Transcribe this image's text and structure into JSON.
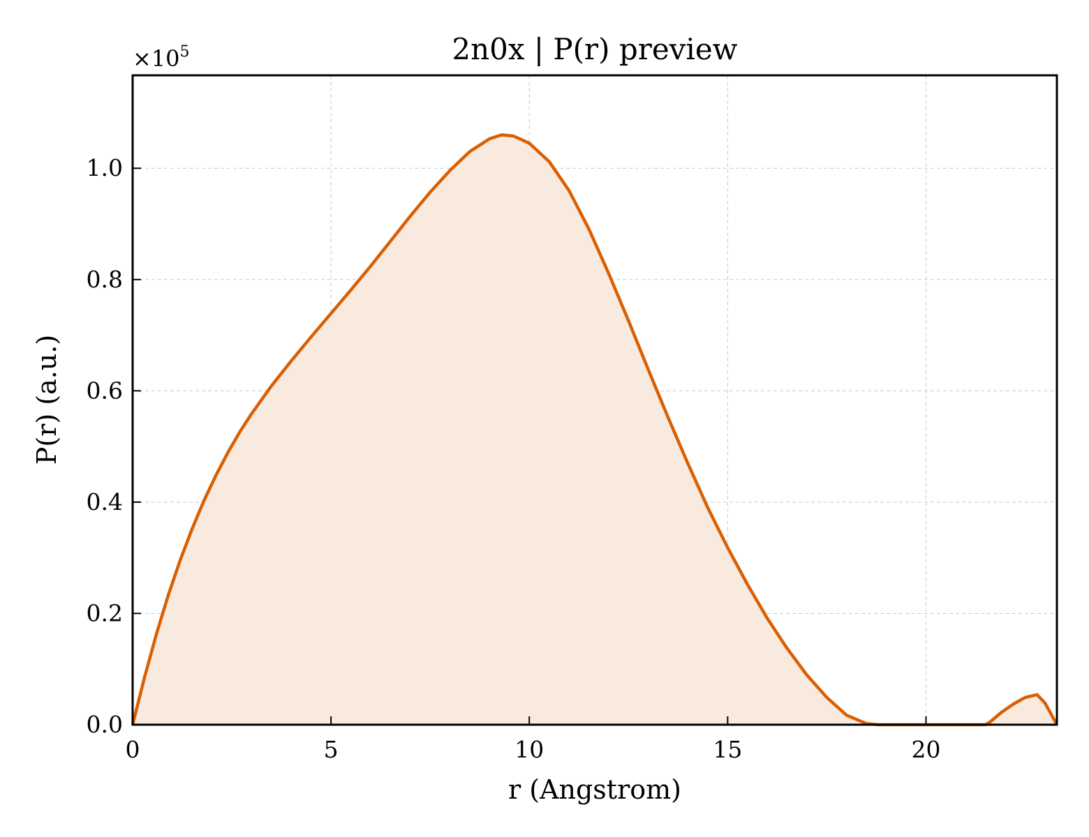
{
  "chart_data": {
    "type": "area",
    "title": "2n0x | P(r) preview",
    "xlabel": "r (Angstrom)",
    "ylabel": "P(r) (a.u.)",
    "y_offset_label": "×10",
    "y_offset_exponent": "5",
    "xlim": [
      0,
      23.3
    ],
    "ylim": [
      0,
      1.167
    ],
    "y_multiplier": 100000,
    "x_ticks": [
      0,
      5,
      10,
      15,
      20
    ],
    "y_ticks": [
      0.0,
      0.2,
      0.4,
      0.6,
      0.8,
      1.0
    ],
    "x_tick_labels": [
      "0",
      "5",
      "10",
      "15",
      "20"
    ],
    "y_tick_labels": [
      "0.0",
      "0.2",
      "0.4",
      "0.6",
      "0.8",
      "1.0"
    ],
    "grid": true,
    "line_color": "#d95f02",
    "fill_color": "#f9eadf",
    "series": [
      {
        "x": [
          0,
          0.3,
          0.6,
          0.9,
          1.2,
          1.5,
          1.8,
          2.1,
          2.4,
          2.7,
          3.0,
          3.5,
          4.0,
          4.5,
          5.0,
          5.5,
          6.0,
          6.5,
          7.0,
          7.5,
          8.0,
          8.5,
          9.0,
          9.3,
          9.6,
          10.0,
          10.5,
          11.0,
          11.5,
          12.0,
          12.5,
          13.0,
          13.5,
          14.0,
          14.5,
          15.0,
          15.5,
          16.0,
          16.5,
          17.0,
          17.5,
          18.0,
          18.5,
          18.8,
          19.5,
          20.5,
          21.5,
          21.6,
          21.9,
          22.2,
          22.5,
          22.8,
          23.0,
          23.3
        ],
        "y": [
          0.0,
          0.085,
          0.163,
          0.233,
          0.296,
          0.352,
          0.403,
          0.448,
          0.489,
          0.526,
          0.559,
          0.609,
          0.654,
          0.697,
          0.739,
          0.781,
          0.824,
          0.869,
          0.914,
          0.957,
          0.996,
          1.03,
          1.053,
          1.06,
          1.058,
          1.045,
          1.012,
          0.96,
          0.891,
          0.811,
          0.726,
          0.638,
          0.552,
          0.469,
          0.39,
          0.318,
          0.252,
          0.191,
          0.137,
          0.089,
          0.049,
          0.017,
          0.002,
          0.0,
          0.0,
          0.0,
          0.0,
          0.004,
          0.022,
          0.037,
          0.049,
          0.054,
          0.039,
          0.0
        ]
      }
    ]
  }
}
